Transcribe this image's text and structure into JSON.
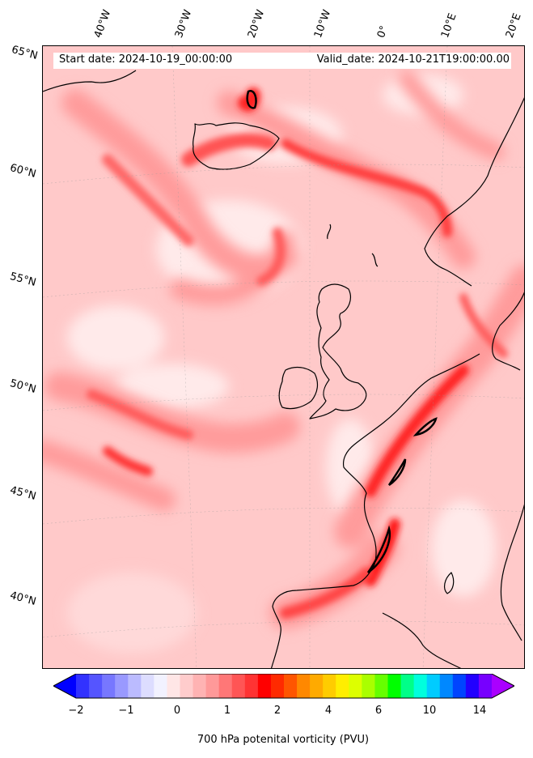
{
  "map": {
    "start_date_text": "Start date: 2024-10-19_00:00:00",
    "valid_date_text": "Valid_date: 2024-10-21T19:00:00.00",
    "lon_labels": [
      "40°W",
      "30°W",
      "20°W",
      "10°W",
      "0°",
      "10°E",
      "20°E"
    ],
    "lat_labels": [
      "65°N",
      "60°N",
      "55°N",
      "50°N",
      "45°N",
      "40°N"
    ],
    "field_variable": "700 hPa potenital vorticity (PVU)",
    "contour_color": "#000000",
    "coastline_color": "#000000"
  },
  "colorbar": {
    "tick_labels": [
      "−2",
      "−1",
      "0",
      "1",
      "2",
      "4",
      "6",
      "10",
      "14"
    ],
    "label": "700 hPa potenital vorticity (PVU)",
    "colors": [
      "#0000ff",
      "#3232ff",
      "#5555ff",
      "#7777ff",
      "#9999ff",
      "#bbbbff",
      "#ddddff",
      "#f2f2ff",
      "#ffe6e6",
      "#ffcccc",
      "#ffb3b3",
      "#ff9999",
      "#ff7777",
      "#ff5555",
      "#ff3333",
      "#ff0000",
      "#ff2a00",
      "#ff5500",
      "#ff8800",
      "#ffaa00",
      "#ffcc00",
      "#ffee00",
      "#ddff00",
      "#aaff00",
      "#66ff00",
      "#00ff00",
      "#00ff88",
      "#00ffdd",
      "#00ccff",
      "#0088ff",
      "#0044ff",
      "#2200ff",
      "#7700ff",
      "#aa00ff"
    ]
  }
}
